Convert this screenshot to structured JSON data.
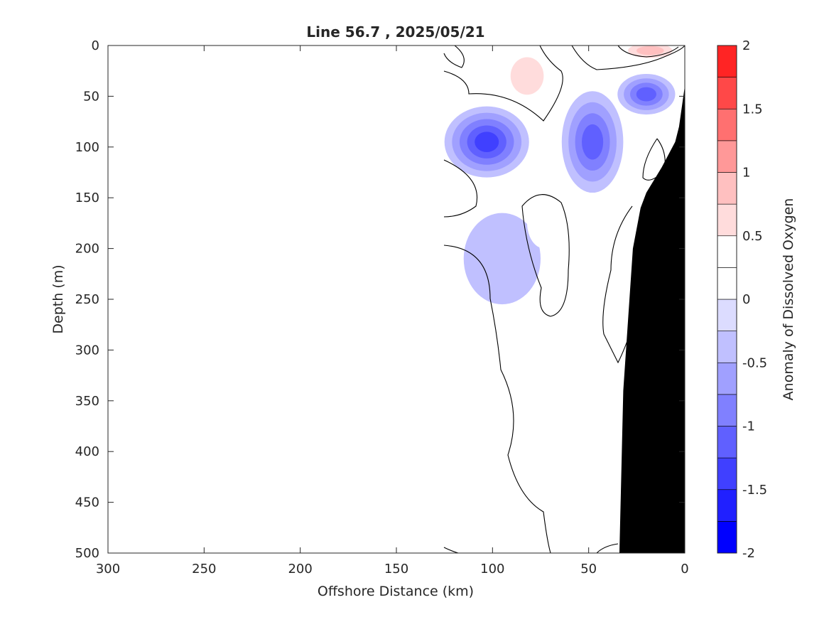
{
  "chart_data": {
    "type": "heatmap",
    "subtype": "filled-contour-section",
    "title": "Line 56.7 , 2025/05/21",
    "xlabel": "Offshore Distance (km)",
    "ylabel": "Depth (m)",
    "xlim": [
      300,
      0
    ],
    "ylim": [
      0,
      500
    ],
    "x_reversed": true,
    "y_reversed": true,
    "x_ticks": [
      300,
      250,
      200,
      150,
      100,
      50,
      0
    ],
    "y_ticks": [
      0,
      50,
      100,
      150,
      200,
      250,
      300,
      350,
      400,
      450,
      500
    ],
    "data_x_range": [
      125,
      0
    ],
    "grid": false,
    "colorbar": {
      "label": "Anomaly of Dissolved Oxygen",
      "range": [
        -2,
        2
      ],
      "ticks": [
        -2,
        -1.5,
        -1,
        -0.5,
        0,
        0.5,
        1,
        1.5,
        2
      ],
      "tick_labels": [
        "-2",
        "-1.5",
        "-1",
        "-0.5",
        "0",
        "0.5",
        "1",
        "1.5",
        "2"
      ],
      "levels": [
        -2,
        -1.75,
        -1.5,
        -1.25,
        -1,
        -0.75,
        -0.5,
        -0.25,
        0,
        0.25,
        0.5,
        0.75,
        1,
        1.25,
        1.5,
        1.75,
        2
      ],
      "colors": [
        "#0000ff",
        "#2020ff",
        "#4040ff",
        "#6060ff",
        "#8080ff",
        "#a0a0ff",
        "#c0c0ff",
        "#dcdcff",
        "#ffffff",
        "#ffffff",
        "#ffdcdc",
        "#ffc0c0",
        "#ff9898",
        "#ff7070",
        "#ff4848",
        "#ff2424",
        "#ff0000"
      ]
    },
    "features": [
      {
        "anomaly": 0.6,
        "x": 82,
        "y": 30,
        "rx": 14,
        "ry": 30
      },
      {
        "anomaly": 0.8,
        "x": 18,
        "y": 5,
        "rx": 16,
        "ry": 10
      },
      {
        "anomaly": 0.4,
        "x": 123,
        "y": 40,
        "rx": 4,
        "ry": 10
      },
      {
        "anomaly": -1.3,
        "x": 103,
        "y": 95,
        "rx": 22,
        "ry": 35
      },
      {
        "anomaly": -1.0,
        "x": 48,
        "y": 95,
        "rx": 16,
        "ry": 50
      },
      {
        "anomaly": -1.1,
        "x": 20,
        "y": 48,
        "rx": 15,
        "ry": 20
      },
      {
        "anomaly": -0.45,
        "x": 95,
        "y": 210,
        "rx": 20,
        "ry": 45
      },
      {
        "anomaly": 0.3,
        "x": 73,
        "y": 175,
        "rx": 9,
        "ry": 25
      },
      {
        "anomaly": 0.35,
        "x": 119,
        "y": 270,
        "rx": 10,
        "ry": 50
      },
      {
        "anomaly": 0.35,
        "x": 117,
        "y": 375,
        "rx": 12,
        "ry": 35
      },
      {
        "anomaly": 0.3,
        "x": 120,
        "y": 150,
        "rx": 5,
        "ry": 22
      }
    ],
    "bathymetry": [
      [
        0,
        40
      ],
      [
        3,
        80
      ],
      [
        5,
        95
      ],
      [
        12,
        120
      ],
      [
        20,
        145
      ],
      [
        23,
        160
      ],
      [
        27,
        200
      ],
      [
        32,
        340
      ],
      [
        34,
        500
      ]
    ]
  }
}
